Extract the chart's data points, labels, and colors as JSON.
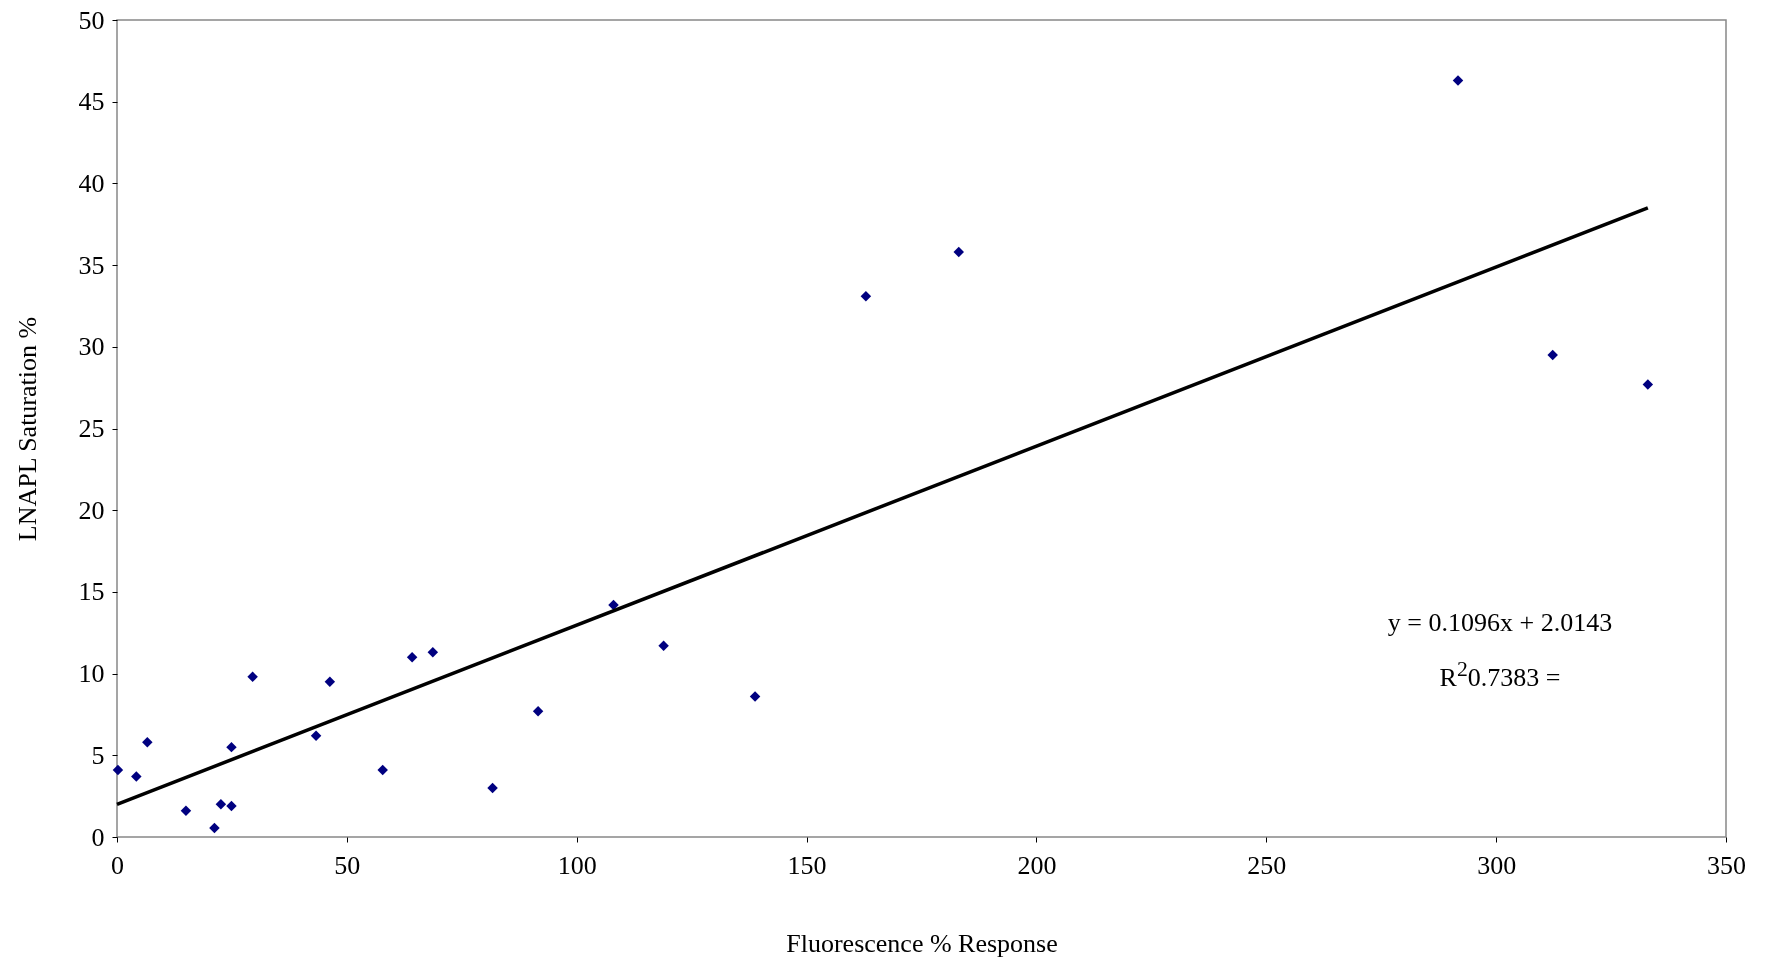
{
  "chart_data": {
    "type": "scatter",
    "xlabel": "Fluorescence % Response",
    "ylabel": "LNAPL Saturation %",
    "xlim": [
      0,
      350
    ],
    "xticks": [
      0,
      50,
      100,
      150,
      200,
      250,
      300,
      350
    ],
    "ylim": [
      0,
      50
    ],
    "yticks": [
      0,
      5,
      10,
      15,
      20,
      25,
      30,
      35,
      40,
      45,
      50
    ],
    "grid": false,
    "series": [
      {
        "marker": "diamond",
        "color": "#000080",
        "x": [
          0.2,
          4.2,
          6.6,
          15,
          21.2,
          22.6,
          24.9,
          24.9,
          29.5,
          43.3,
          46.3,
          57.8,
          64.2,
          68.7,
          81.7,
          91.6,
          108,
          118.9,
          138.8,
          162.9,
          183.1,
          291.7,
          312.3,
          333
        ],
        "values": [
          4.1,
          3.7,
          5.8,
          1.6,
          0.55,
          2.0,
          1.9,
          5.5,
          9.8,
          6.2,
          9.5,
          4.1,
          11.0,
          11.3,
          3.0,
          7.7,
          14.2,
          11.7,
          8.6,
          33.1,
          35.8,
          46.3,
          29.5,
          27.7
        ]
      },
      {
        "type": "line",
        "color": "#000000",
        "line_style": "solid",
        "x": [
          0,
          333
        ],
        "values": [
          2.0,
          38.5
        ]
      }
    ],
    "annotations": [
      "y = 0.1096x + 2.0143",
      "R$^{2}$0.7383 ="
    ]
  }
}
